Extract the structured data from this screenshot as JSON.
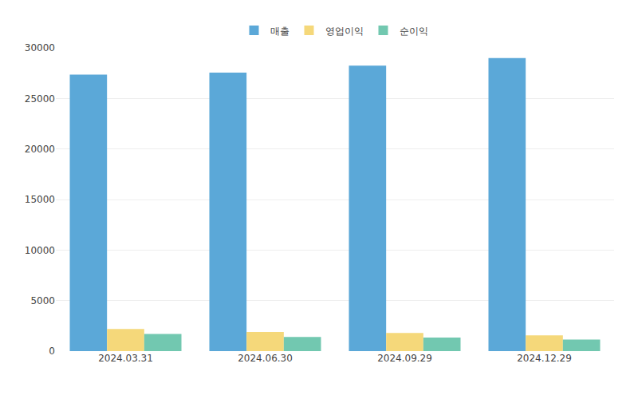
{
  "chart_data": {
    "type": "bar",
    "categories": [
      "2024.03.31",
      "2024.06.30",
      "2024.09.29",
      "2024.12.29"
    ],
    "series": [
      {
        "name": "매출",
        "color": "#5BA8D8",
        "values": [
          27350,
          27550,
          28250,
          29000
        ]
      },
      {
        "name": "영업이익",
        "color": "#F5D87A",
        "values": [
          2200,
          1900,
          1800,
          1550
        ]
      },
      {
        "name": "순이익",
        "color": "#72C8B0",
        "values": [
          1700,
          1400,
          1350,
          1150
        ]
      }
    ],
    "ylim": [
      0,
      30000
    ],
    "yticks": [
      0,
      5000,
      10000,
      15000,
      20000,
      25000,
      30000
    ],
    "grid": true,
    "legend": "top"
  }
}
